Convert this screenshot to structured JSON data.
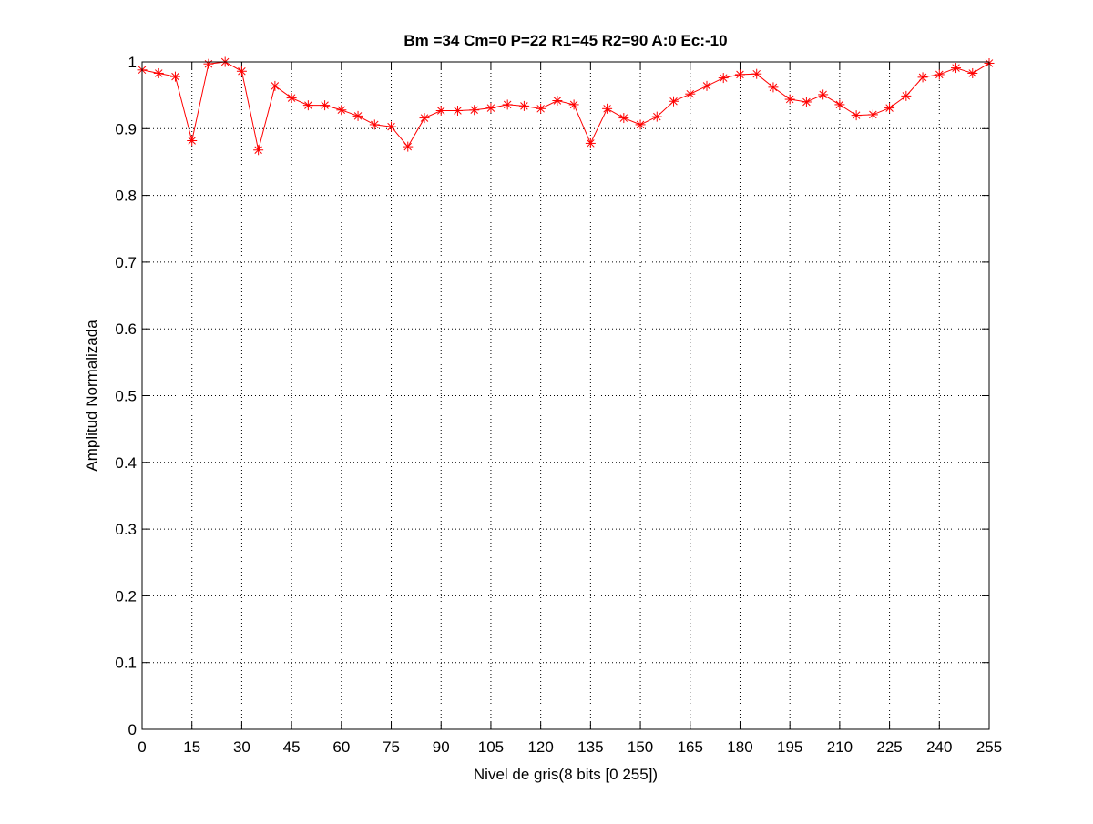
{
  "chart_data": {
    "type": "line",
    "title": "Bm =34  Cm=0  P=22  R1=45  R2=90  A:0  Ec:-10",
    "xlabel": "Nivel de gris(8 bits [0 255])",
    "ylabel": "Amplitud Normalizada",
    "xlim": [
      0,
      255
    ],
    "ylim": [
      0,
      1
    ],
    "xticks": [
      0,
      15,
      30,
      45,
      60,
      75,
      90,
      105,
      120,
      135,
      150,
      165,
      180,
      195,
      210,
      225,
      240,
      255
    ],
    "yticks": [
      0,
      0.1,
      0.2,
      0.3,
      0.4,
      0.5,
      0.6,
      0.7,
      0.8,
      0.9,
      1
    ],
    "ytick_labels": [
      "0",
      "0.1",
      "0.2",
      "0.3",
      "0.4",
      "0.5",
      "0.6",
      "0.7",
      "0.8",
      "0.9",
      "1"
    ],
    "grid": true,
    "marker": "asterisk",
    "series": [
      {
        "color": "#ff0000",
        "x": [
          0,
          5,
          10,
          15,
          20,
          25,
          30,
          35,
          40,
          45,
          50,
          55,
          60,
          65,
          70,
          75,
          80,
          85,
          90,
          95,
          100,
          105,
          110,
          115,
          120,
          125,
          130,
          135,
          140,
          145,
          150,
          155,
          160,
          165,
          170,
          175,
          180,
          185,
          190,
          195,
          200,
          205,
          210,
          215,
          220,
          225,
          230,
          235,
          240,
          245,
          250,
          255
        ],
        "y": [
          0.988,
          0.983,
          0.978,
          0.882,
          0.997,
          1.0,
          0.986,
          0.868,
          0.964,
          0.946,
          0.935,
          0.935,
          0.928,
          0.919,
          0.906,
          0.903,
          0.873,
          0.916,
          0.927,
          0.927,
          0.928,
          0.931,
          0.936,
          0.934,
          0.93,
          0.942,
          0.936,
          0.878,
          0.93,
          0.916,
          0.906,
          0.918,
          0.941,
          0.952,
          0.964,
          0.976,
          0.981,
          0.982,
          0.962,
          0.944,
          0.94,
          0.951,
          0.936,
          0.92,
          0.921,
          0.931,
          0.949,
          0.977,
          0.981,
          0.991,
          0.983,
          0.998
        ]
      }
    ]
  }
}
